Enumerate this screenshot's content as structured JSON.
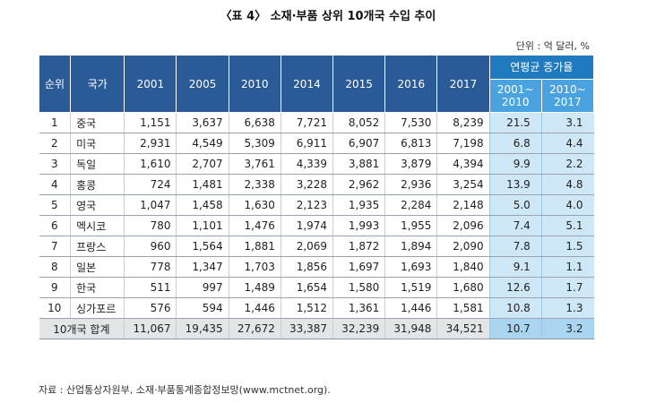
{
  "title": "〈표 4〉 소재·부품 상위 10개국 수입 추이",
  "unit": "단위 : 억 달러, %",
  "headers": {
    "rank": "순위",
    "country": "국가",
    "years": [
      "2001",
      "2005",
      "2010",
      "2014",
      "2015",
      "2016",
      "2017"
    ],
    "rate_group": "연평균 증가율",
    "rate_sub": [
      {
        "line1": "2001~",
        "line2": "2010"
      },
      {
        "line1": "2010~",
        "line2": "2017"
      }
    ]
  },
  "rows": [
    {
      "rank": "1",
      "country": "중국",
      "values": [
        "1,151",
        "3,637",
        "6,638",
        "7,721",
        "8,052",
        "7,530",
        "8,239"
      ],
      "rates": [
        "21.5",
        "3.1"
      ]
    },
    {
      "rank": "2",
      "country": "미국",
      "values": [
        "2,931",
        "4,549",
        "5,309",
        "6,911",
        "6,907",
        "6,813",
        "7,198"
      ],
      "rates": [
        "6.8",
        "4.4"
      ]
    },
    {
      "rank": "3",
      "country": "독일",
      "values": [
        "1,610",
        "2,707",
        "3,761",
        "4,339",
        "3,881",
        "3,879",
        "4,394"
      ],
      "rates": [
        "9.9",
        "2.2"
      ]
    },
    {
      "rank": "4",
      "country": "홍콩",
      "values": [
        "724",
        "1,481",
        "2,338",
        "3,228",
        "2,962",
        "2,936",
        "3,254"
      ],
      "rates": [
        "13.9",
        "4.8"
      ]
    },
    {
      "rank": "5",
      "country": "영국",
      "values": [
        "1,047",
        "1,458",
        "1,630",
        "2,123",
        "1,935",
        "2,284",
        "2,148"
      ],
      "rates": [
        "5.0",
        "4.0"
      ]
    },
    {
      "rank": "6",
      "country": "멕시코",
      "values": [
        "780",
        "1,101",
        "1,476",
        "1,974",
        "1,993",
        "1,955",
        "2,096"
      ],
      "rates": [
        "7.4",
        "5.1"
      ]
    },
    {
      "rank": "7",
      "country": "프랑스",
      "values": [
        "960",
        "1,564",
        "1,881",
        "2,069",
        "1,872",
        "1,894",
        "2,090"
      ],
      "rates": [
        "7.8",
        "1.5"
      ]
    },
    {
      "rank": "8",
      "country": "일본",
      "values": [
        "778",
        "1,347",
        "1,703",
        "1,856",
        "1,697",
        "1,693",
        "1,840"
      ],
      "rates": [
        "9.1",
        "1.1"
      ]
    },
    {
      "rank": "9",
      "country": "한국",
      "values": [
        "511",
        "997",
        "1,489",
        "1,654",
        "1,580",
        "1,519",
        "1,680"
      ],
      "rates": [
        "12.6",
        "1.7"
      ]
    },
    {
      "rank": "10",
      "country": "싱가포르",
      "values": [
        "576",
        "594",
        "1,446",
        "1,512",
        "1,361",
        "1,446",
        "1,581"
      ],
      "rates": [
        "10.8",
        "1.3"
      ]
    }
  ],
  "total": {
    "label": "10개국 합계",
    "values": [
      "11,067",
      "19,435",
      "27,672",
      "33,387",
      "32,239",
      "31,948",
      "34,521"
    ],
    "rates": [
      "10.7",
      "3.2"
    ]
  },
  "source": "자료 : 산업통상자원부, 소재·부품통계종합정보망(www.mctnet.org)."
}
